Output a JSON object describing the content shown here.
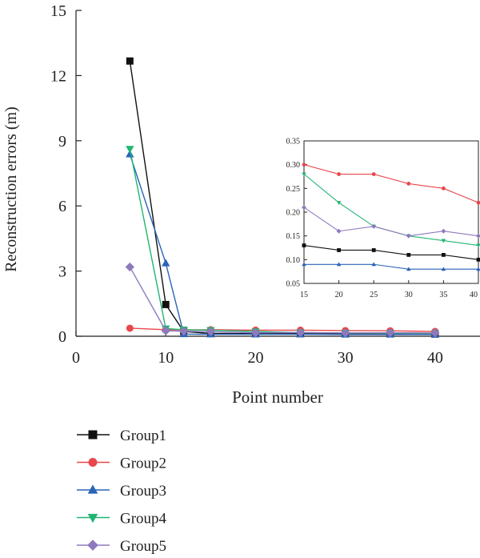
{
  "chart_data": [
    {
      "type": "line",
      "xlabel": "Point number",
      "ylabel": "Reconstruction errors (m)",
      "xlim": [
        0,
        45
      ],
      "ylim": [
        0,
        15
      ],
      "xticks": [
        0,
        10,
        20,
        30,
        40
      ],
      "yticks": [
        0,
        3,
        6,
        9,
        12,
        15
      ],
      "legend_position": "bottom-left",
      "series": [
        {
          "name": "Group1",
          "color": "#111111",
          "marker": "square",
          "x": [
            6,
            10,
            12,
            15,
            20,
            25,
            30,
            35,
            40
          ],
          "y": [
            12.67,
            1.46,
            0.22,
            0.13,
            0.12,
            0.12,
            0.11,
            0.11,
            0.1
          ]
        },
        {
          "name": "Group2",
          "color": "#e8474b",
          "marker": "circle",
          "x": [
            6,
            10,
            12,
            15,
            20,
            25,
            30,
            35,
            40
          ],
          "y": [
            0.37,
            0.3,
            0.29,
            0.3,
            0.28,
            0.28,
            0.26,
            0.25,
            0.22
          ]
        },
        {
          "name": "Group3",
          "color": "#2a63b8",
          "marker": "triangle-up",
          "x": [
            6,
            10,
            12,
            15,
            20,
            25,
            30,
            35,
            40
          ],
          "y": [
            8.38,
            3.36,
            0.1,
            0.09,
            0.09,
            0.09,
            0.08,
            0.08,
            0.08
          ]
        },
        {
          "name": "Group4",
          "color": "#21b573",
          "marker": "triangle-down",
          "x": [
            6,
            10,
            12,
            15,
            20,
            25,
            30,
            35,
            40
          ],
          "y": [
            8.62,
            0.35,
            0.3,
            0.28,
            0.22,
            0.17,
            0.15,
            0.14,
            0.13
          ]
        },
        {
          "name": "Group5",
          "color": "#8e79bd",
          "marker": "diamond",
          "x": [
            6,
            10,
            12,
            15,
            20,
            25,
            30,
            35,
            40
          ],
          "y": [
            3.19,
            0.25,
            0.23,
            0.21,
            0.16,
            0.17,
            0.15,
            0.16,
            0.15
          ]
        }
      ]
    },
    {
      "type": "line",
      "role": "inset",
      "xlim": [
        15,
        40
      ],
      "ylim": [
        0.05,
        0.35
      ],
      "xticks": [
        15,
        20,
        25,
        30,
        35,
        40
      ],
      "yticks": [
        "0.05",
        "0.10",
        "0.15",
        "0.20",
        "0.25",
        "0.30",
        "0.35"
      ],
      "series": [
        {
          "name": "Group1",
          "color": "#111111",
          "marker": "square",
          "x": [
            15,
            20,
            25,
            30,
            35,
            40
          ],
          "y": [
            0.13,
            0.12,
            0.12,
            0.11,
            0.11,
            0.1
          ]
        },
        {
          "name": "Group2",
          "color": "#e8474b",
          "marker": "circle",
          "x": [
            15,
            20,
            25,
            30,
            35,
            40
          ],
          "y": [
            0.3,
            0.28,
            0.28,
            0.26,
            0.25,
            0.22
          ]
        },
        {
          "name": "Group3",
          "color": "#2a63b8",
          "marker": "triangle-up",
          "x": [
            15,
            20,
            25,
            30,
            35,
            40
          ],
          "y": [
            0.09,
            0.09,
            0.09,
            0.08,
            0.08,
            0.08
          ]
        },
        {
          "name": "Group4",
          "color": "#21b573",
          "marker": "triangle-down",
          "x": [
            15,
            20,
            25,
            30,
            35,
            40
          ],
          "y": [
            0.28,
            0.22,
            0.17,
            0.15,
            0.14,
            0.13
          ]
        },
        {
          "name": "Group5",
          "color": "#8e79bd",
          "marker": "diamond",
          "x": [
            15,
            20,
            25,
            30,
            35,
            40
          ],
          "y": [
            0.21,
            0.16,
            0.17,
            0.15,
            0.16,
            0.15
          ]
        }
      ]
    }
  ]
}
